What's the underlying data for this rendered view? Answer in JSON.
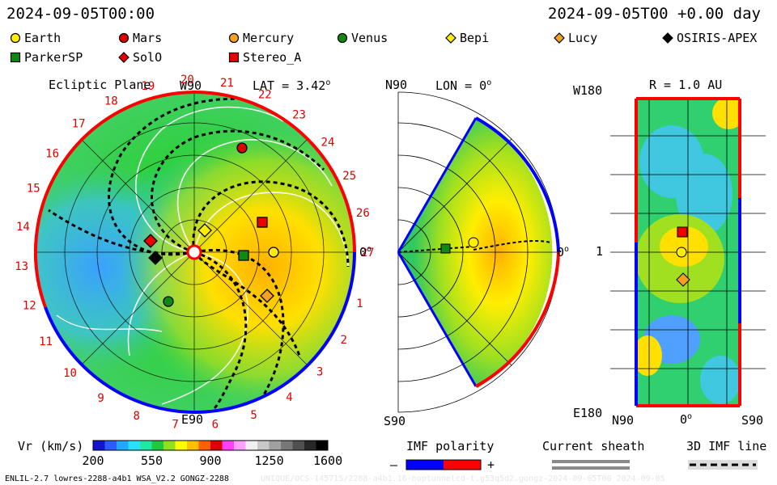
{
  "header": {
    "date_left": "2024-09-05T00:00",
    "date_right": "2024-09-05T00 +0.00 day"
  },
  "legend": [
    {
      "label": "Earth",
      "shape": "circle",
      "color": "#ffee00"
    },
    {
      "label": "Mars",
      "shape": "circle",
      "color": "#dd0000"
    },
    {
      "label": "Mercury",
      "shape": "circle",
      "color": "#f4a020"
    },
    {
      "label": "Venus",
      "shape": "circle",
      "color": "#118811"
    },
    {
      "label": "Bepi",
      "shape": "diamond",
      "color": "#ffee00"
    },
    {
      "label": "Lucy",
      "shape": "diamond",
      "color": "#f4a020"
    },
    {
      "label": "OSIRIS-APEX",
      "shape": "diamond",
      "color": "#000000"
    },
    {
      "label": "ParkerSP",
      "shape": "square",
      "color": "#118811"
    },
    {
      "label": "SolO",
      "shape": "diamond",
      "color": "#ee0000"
    },
    {
      "label": "Stereo_A",
      "shape": "square",
      "color": "#ee0000"
    }
  ],
  "panel_ecliptic": {
    "title": "Ecliptic Plane",
    "top_label": "W90",
    "bottom_label": "E90",
    "right_label": "0",
    "lat_label": "LAT = 3.42",
    "degree_mark": "o",
    "carrington_ticks": [
      "1",
      "2",
      "3",
      "4",
      "5",
      "6",
      "7",
      "8",
      "9",
      "10",
      "11",
      "12",
      "13",
      "14",
      "15",
      "16",
      "17",
      "18",
      "19",
      "20",
      "21",
      "22",
      "23",
      "24",
      "25",
      "26",
      "27"
    ]
  },
  "panel_meridional": {
    "top_label": "N90",
    "bottom_label": "S90",
    "lon_label": "LON = 0",
    "right_label": "0",
    "degree_mark": "o"
  },
  "panel_map": {
    "title": "R = 1.0 AU",
    "top_left_label": "W180",
    "bottom_left_label": "E180",
    "left_mid_label": "1",
    "x_labels": [
      "N90",
      "0",
      "S90"
    ],
    "degree_mark": "o"
  },
  "colorbar": {
    "label": "Vr (km/s)",
    "ticks": [
      "200",
      "550",
      "900",
      "1250",
      "1600"
    ],
    "colors": [
      "#1414d0",
      "#2a5cff",
      "#22a8ff",
      "#28e0ff",
      "#20e8a0",
      "#20c840",
      "#90e020",
      "#ffff00",
      "#ffc000",
      "#ff6000",
      "#e00000",
      "#ff40ff",
      "#ffa0ff",
      "#f0f0f0",
      "#c8c8c8",
      "#a0a0a0",
      "#787878",
      "#505050",
      "#282828",
      "#000000"
    ]
  },
  "imf_polarity": {
    "label": "IMF polarity",
    "minus": "–",
    "plus": "+",
    "color_neg": "#0000ff",
    "color_pos": "#ff0000"
  },
  "current_sheath": {
    "label": "Current sheath"
  },
  "imf_line": {
    "label": "3D IMF line"
  },
  "footer": {
    "left": "ENLIL-2.7 lowres-2288-a4b1 WSA_V2.2 GONGZ-2288",
    "right": "UNIQUE/OCS-145715/2288-a4b1.16-noptunnelcd-t.g53q5d2.gongz-2024-09-05T00 2024-09-05"
  }
}
